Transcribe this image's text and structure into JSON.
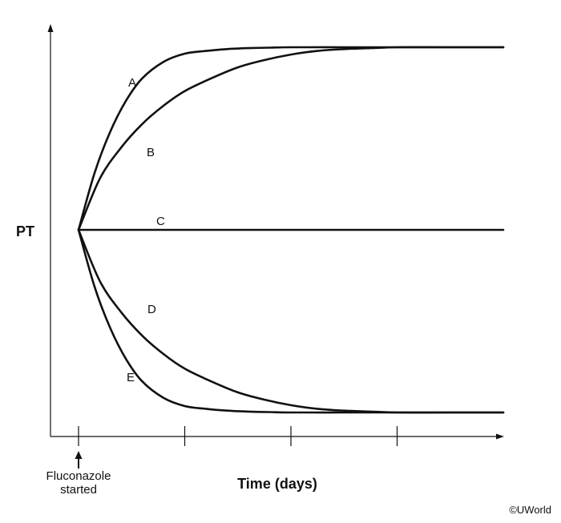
{
  "chart_data": {
    "type": "line",
    "xlabel": "Time (days)",
    "ylabel": "PT",
    "annotation": "Fluconazole started",
    "credit": "©UWorld",
    "x_ticks": 4,
    "series": [
      {
        "name": "A",
        "x": [
          0,
          0.15,
          0.3,
          0.45,
          0.6,
          0.8,
          1.0,
          1.2,
          1.4,
          1.6,
          1.8,
          2.0,
          2.5,
          3.0,
          3.5,
          4.0
        ],
        "y": [
          0,
          0.31,
          0.54,
          0.71,
          0.83,
          0.92,
          0.965,
          0.98,
          0.99,
          0.995,
          0.998,
          1,
          1,
          1,
          1,
          1
        ]
      },
      {
        "name": "B",
        "x": [
          0,
          0.2,
          0.4,
          0.6,
          0.8,
          1.0,
          1.25,
          1.5,
          1.75,
          2.0,
          2.25,
          2.5,
          2.75,
          3.0,
          3.5,
          4.0
        ],
        "y": [
          0,
          0.28,
          0.45,
          0.58,
          0.68,
          0.76,
          0.83,
          0.89,
          0.93,
          0.96,
          0.98,
          0.99,
          0.995,
          1,
          1,
          1
        ]
      },
      {
        "name": "C",
        "x": [
          0,
          4.0
        ],
        "y": [
          0,
          0
        ]
      },
      {
        "name": "D",
        "x": [
          0,
          0.2,
          0.4,
          0.6,
          0.8,
          1.0,
          1.25,
          1.5,
          1.75,
          2.0,
          2.25,
          2.5,
          2.75,
          3.0,
          3.5,
          4.0
        ],
        "y": [
          0,
          -0.28,
          -0.45,
          -0.58,
          -0.68,
          -0.76,
          -0.83,
          -0.89,
          -0.93,
          -0.96,
          -0.98,
          -0.99,
          -0.995,
          -1,
          -1,
          -1
        ]
      },
      {
        "name": "E",
        "x": [
          0,
          0.15,
          0.3,
          0.45,
          0.6,
          0.8,
          1.0,
          1.2,
          1.4,
          1.6,
          1.8,
          2.0,
          2.5,
          3.0,
          3.5,
          4.0
        ],
        "y": [
          0,
          -0.31,
          -0.54,
          -0.71,
          -0.83,
          -0.92,
          -0.965,
          -0.98,
          -0.99,
          -0.995,
          -0.998,
          -1,
          -1,
          -1,
          -1,
          -1
        ]
      }
    ]
  }
}
